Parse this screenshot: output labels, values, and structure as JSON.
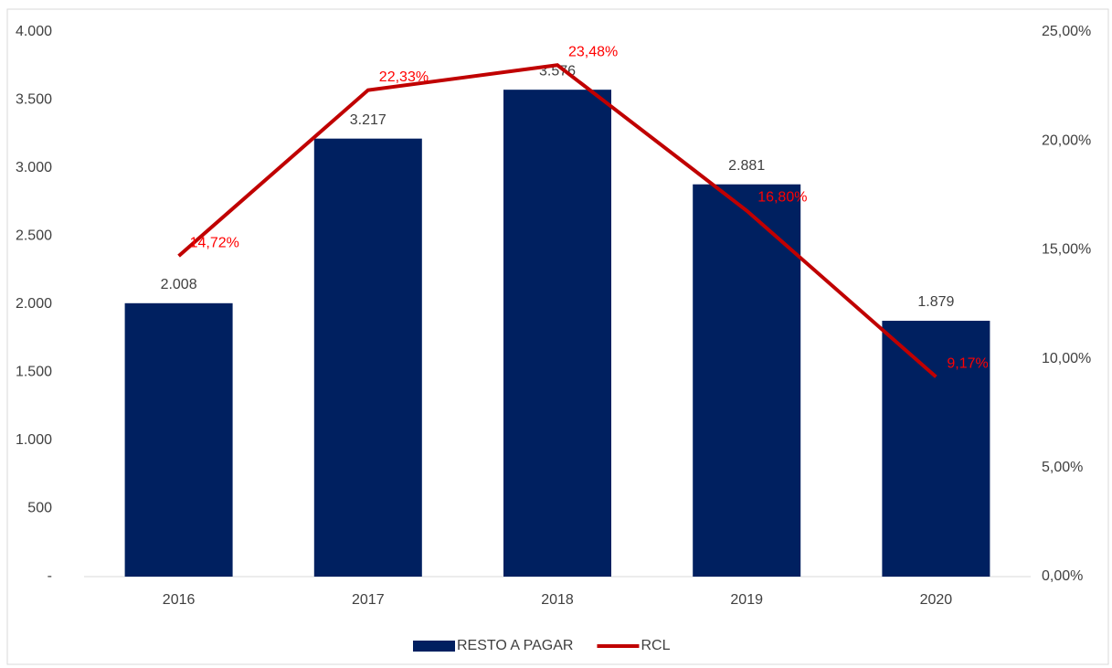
{
  "chart_data": {
    "type": "bar",
    "categories": [
      "2016",
      "2017",
      "2018",
      "2019",
      "2020"
    ],
    "series": [
      {
        "name": "RESTO A PAGAR",
        "type": "bar",
        "color": "#002060",
        "axis": "y",
        "values": [
          2008,
          3217,
          3576,
          2881,
          1879
        ],
        "value_labels": [
          "2.008",
          "3.217",
          "3.576",
          "2.881",
          "1.879"
        ]
      },
      {
        "name": "RCL",
        "type": "line",
        "color": "#c00000",
        "axis": "y2",
        "values": [
          14.72,
          22.33,
          23.48,
          16.8,
          9.17
        ],
        "value_labels": [
          "14,72%",
          "22,33%",
          "23,48%",
          "16,80%",
          "9,17%"
        ]
      }
    ],
    "ylim": [
      0,
      4000
    ],
    "yticks": [
      {
        "value": 0,
        "label": "-"
      },
      500,
      {
        "value": 1000,
        "label": "1.000"
      },
      {
        "value": 1500,
        "label": "1.500"
      },
      {
        "value": 2000,
        "label": "2.000"
      },
      {
        "value": 2500,
        "label": "2.500"
      },
      {
        "value": 3000,
        "label": "3.000"
      },
      {
        "value": 3500,
        "label": "3.500"
      },
      {
        "value": 4000,
        "label": "4.000"
      }
    ],
    "y2lim": [
      0,
      25
    ],
    "y2ticks": [
      {
        "value": 0,
        "label": "0,00%"
      },
      {
        "value": 5,
        "label": "5,00%"
      },
      {
        "value": 10,
        "label": "10,00%"
      },
      {
        "value": 15,
        "label": "15,00%"
      },
      {
        "value": 20,
        "label": "20,00%"
      },
      {
        "value": 25,
        "label": "25,00%"
      }
    ],
    "legend": "bottom"
  }
}
